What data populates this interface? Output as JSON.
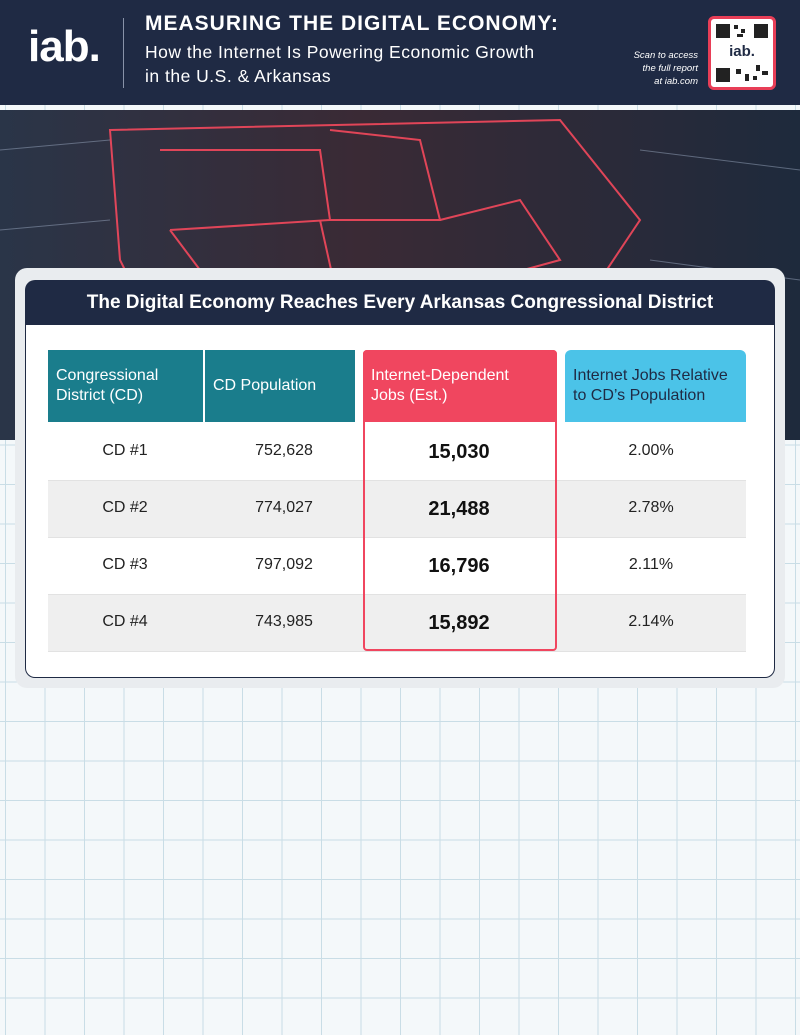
{
  "header": {
    "logo": "iab.",
    "title": "MEASURING THE DIGITAL ECONOMY:",
    "subtitle_lines": [
      "How the Internet Is Powering Economic Growth",
      "in the U.S. & Arkansas"
    ],
    "qr_note_lines": [
      "Scan to access",
      "the full report",
      "at iab.com"
    ],
    "qr_logo": "iab."
  },
  "table": {
    "title": "The Digital Economy Reaches Every Arkansas Congressional District",
    "columns": [
      [
        "Congressional",
        "District (CD)"
      ],
      [
        "CD Population"
      ],
      [
        "Internet-Dependent",
        "Jobs (Est.)"
      ],
      [
        "Internet Jobs Relative",
        "to CD’s Population"
      ]
    ],
    "rows": [
      [
        "CD #1",
        "752,628",
        "15,030",
        "2.00%"
      ],
      [
        "CD #2",
        "774,027",
        "21,488",
        "2.78%"
      ],
      [
        "CD #3",
        "797,092",
        "16,796",
        "2.11%"
      ],
      [
        "CD #4",
        "743,985",
        "15,892",
        "2.14%"
      ]
    ]
  }
}
